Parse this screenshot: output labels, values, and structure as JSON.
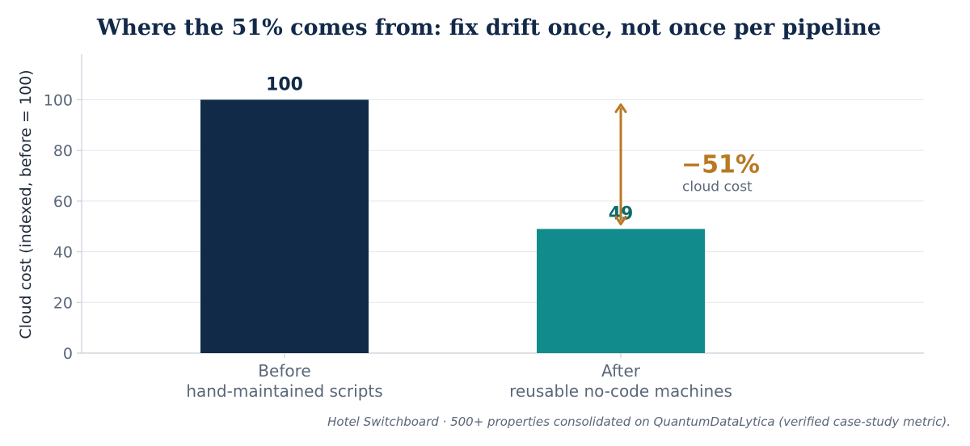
{
  "chart_data": {
    "type": "bar",
    "title": "Where the 51% comes from: fix drift once, not once per pipeline",
    "ylabel": "Cloud cost (indexed, before = 100)",
    "xlabel": "",
    "ylim": [
      0,
      118
    ],
    "yticks": [
      0,
      20,
      40,
      60,
      80,
      100
    ],
    "grid": true,
    "categories": [
      [
        "Before",
        "hand-maintained scripts"
      ],
      [
        "After",
        "reusable no-code machines"
      ]
    ],
    "values": [
      100,
      49
    ],
    "value_labels": [
      "100",
      "49"
    ],
    "colors": [
      "#112a47",
      "#128b8c"
    ],
    "label_colors": [
      "#112a47",
      "#0f6b6c"
    ],
    "annotation": {
      "type": "double-arrow",
      "from": 100,
      "to": 49,
      "category_index": 1,
      "color": "#b87922",
      "text": "−51%",
      "subtext": "cloud cost"
    },
    "footnote": "Hotel Switchboard · 500+ properties consolidated on QuantumDataLytica (verified case-study metric)."
  }
}
